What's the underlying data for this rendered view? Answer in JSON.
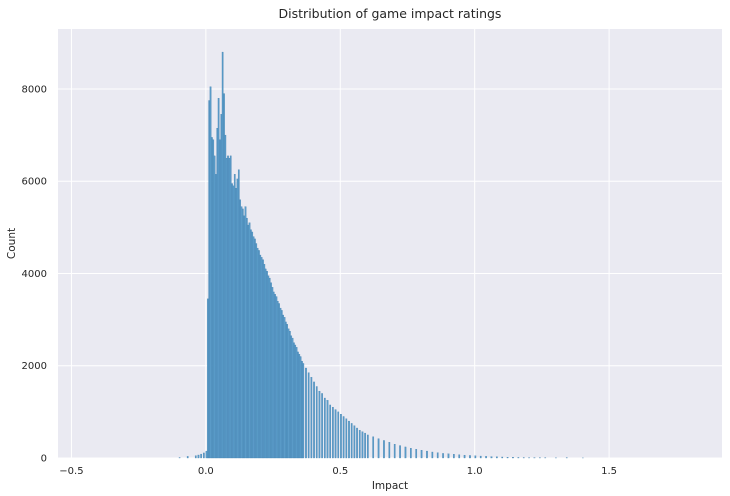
{
  "chart_data": {
    "type": "bar",
    "subtype": "histogram",
    "title": "Distribution of game impact ratings",
    "xlabel": "Impact",
    "ylabel": "Count",
    "xlim": [
      -0.55,
      1.92
    ],
    "ylim": [
      0,
      9300
    ],
    "x_ticks": [
      -0.5,
      0.0,
      0.5,
      1.0,
      1.5
    ],
    "x_tick_labels": [
      "−0.5",
      "0.0",
      "0.5",
      "1.0",
      "1.5"
    ],
    "y_ticks": [
      0,
      2000,
      4000,
      6000,
      8000
    ],
    "y_tick_labels": [
      "0",
      "2000",
      "4000",
      "6000",
      "8000"
    ],
    "grid": true,
    "bin_width": 0.005,
    "bins": [
      [
        -0.1,
        10
      ],
      [
        -0.07,
        35
      ],
      [
        -0.04,
        50
      ],
      [
        -0.03,
        65
      ],
      [
        -0.02,
        85
      ],
      [
        -0.01,
        110
      ],
      [
        0.0,
        150
      ],
      [
        0.005,
        3450
      ],
      [
        0.01,
        7750
      ],
      [
        0.015,
        8050
      ],
      [
        0.02,
        6950
      ],
      [
        0.025,
        6900
      ],
      [
        0.03,
        6550
      ],
      [
        0.035,
        6150
      ],
      [
        0.04,
        7150
      ],
      [
        0.045,
        7800
      ],
      [
        0.05,
        6900
      ],
      [
        0.055,
        7450
      ],
      [
        0.06,
        8800
      ],
      [
        0.065,
        7900
      ],
      [
        0.07,
        7000
      ],
      [
        0.075,
        6500
      ],
      [
        0.08,
        6550
      ],
      [
        0.085,
        6500
      ],
      [
        0.09,
        6550
      ],
      [
        0.095,
        5950
      ],
      [
        0.1,
        5900
      ],
      [
        0.105,
        6150
      ],
      [
        0.11,
        5850
      ],
      [
        0.115,
        6050
      ],
      [
        0.12,
        6250
      ],
      [
        0.125,
        5600
      ],
      [
        0.13,
        5450
      ],
      [
        0.135,
        5400
      ],
      [
        0.14,
        5250
      ],
      [
        0.145,
        5450
      ],
      [
        0.15,
        5200
      ],
      [
        0.155,
        5050
      ],
      [
        0.16,
        5100
      ],
      [
        0.165,
        4950
      ],
      [
        0.17,
        4900
      ],
      [
        0.175,
        4800
      ],
      [
        0.18,
        4750
      ],
      [
        0.185,
        4650
      ],
      [
        0.19,
        4550
      ],
      [
        0.195,
        4500
      ],
      [
        0.2,
        4400
      ],
      [
        0.205,
        4350
      ],
      [
        0.21,
        4300
      ],
      [
        0.215,
        4200
      ],
      [
        0.22,
        4100
      ],
      [
        0.225,
        4050
      ],
      [
        0.23,
        3950
      ],
      [
        0.235,
        3900
      ],
      [
        0.24,
        3800
      ],
      [
        0.245,
        3700
      ],
      [
        0.25,
        3600
      ],
      [
        0.255,
        3550
      ],
      [
        0.26,
        3500
      ],
      [
        0.265,
        3400
      ],
      [
        0.27,
        3350
      ],
      [
        0.275,
        3250
      ],
      [
        0.28,
        3200
      ],
      [
        0.285,
        3100
      ],
      [
        0.29,
        3050
      ],
      [
        0.295,
        2950
      ],
      [
        0.3,
        2900
      ],
      [
        0.305,
        2800
      ],
      [
        0.31,
        2750
      ],
      [
        0.315,
        2650
      ],
      [
        0.32,
        2600
      ],
      [
        0.325,
        2500
      ],
      [
        0.33,
        2450
      ],
      [
        0.335,
        2400
      ],
      [
        0.34,
        2300
      ],
      [
        0.345,
        2250
      ],
      [
        0.35,
        2200
      ],
      [
        0.355,
        2100
      ],
      [
        0.36,
        2050
      ],
      [
        0.37,
        1950
      ],
      [
        0.38,
        1850
      ],
      [
        0.39,
        1750
      ],
      [
        0.4,
        1650
      ],
      [
        0.41,
        1550
      ],
      [
        0.42,
        1450
      ],
      [
        0.43,
        1400
      ],
      [
        0.44,
        1300
      ],
      [
        0.45,
        1250
      ],
      [
        0.46,
        1150
      ],
      [
        0.47,
        1100
      ],
      [
        0.48,
        1050
      ],
      [
        0.49,
        1000
      ],
      [
        0.5,
        950
      ],
      [
        0.51,
        900
      ],
      [
        0.52,
        850
      ],
      [
        0.53,
        800
      ],
      [
        0.54,
        750
      ],
      [
        0.55,
        700
      ],
      [
        0.56,
        650
      ],
      [
        0.57,
        600
      ],
      [
        0.58,
        570
      ],
      [
        0.59,
        540
      ],
      [
        0.6,
        500
      ],
      [
        0.62,
        460
      ],
      [
        0.64,
        420
      ],
      [
        0.66,
        380
      ],
      [
        0.68,
        340
      ],
      [
        0.7,
        300
      ],
      [
        0.72,
        270
      ],
      [
        0.74,
        240
      ],
      [
        0.76,
        210
      ],
      [
        0.78,
        190
      ],
      [
        0.8,
        170
      ],
      [
        0.82,
        150
      ],
      [
        0.84,
        130
      ],
      [
        0.86,
        115
      ],
      [
        0.88,
        100
      ],
      [
        0.9,
        90
      ],
      [
        0.92,
        80
      ],
      [
        0.94,
        70
      ],
      [
        0.96,
        62
      ],
      [
        0.98,
        55
      ],
      [
        1.0,
        48
      ],
      [
        1.02,
        42
      ],
      [
        1.04,
        36
      ],
      [
        1.06,
        30
      ],
      [
        1.08,
        26
      ],
      [
        1.1,
        22
      ],
      [
        1.12,
        18
      ],
      [
        1.14,
        15
      ],
      [
        1.16,
        12
      ],
      [
        1.18,
        10
      ],
      [
        1.2,
        8
      ],
      [
        1.22,
        6
      ],
      [
        1.24,
        5
      ],
      [
        1.26,
        4
      ],
      [
        1.3,
        3
      ],
      [
        1.34,
        8
      ],
      [
        1.4,
        2
      ]
    ],
    "bar_color": "#5b9cc9",
    "bar_edge_color": "#3f7fae",
    "background_color": "#eaeaf2",
    "grid_color": "#ffffff"
  }
}
